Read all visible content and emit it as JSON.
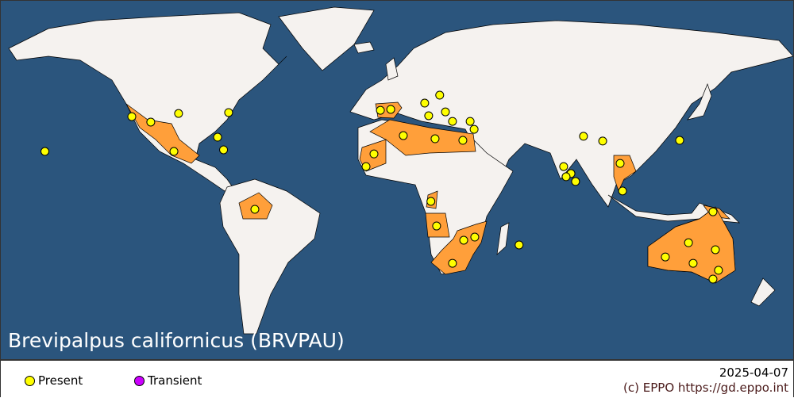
{
  "title": "Brevipalpus californicus (BRVPAU)",
  "colors": {
    "ocean": "#2b557d",
    "land": "#f5f2ef",
    "present_region": "#ff9f3a",
    "present_dot": "#ffff00",
    "transient_dot": "#cc00ff"
  },
  "legend": {
    "present": "Present",
    "transient": "Transient"
  },
  "date": "2025-04-07",
  "copyright": "(c) EPPO https://gd.eppo.int",
  "records": [
    {
      "status": "present",
      "lon": -120.6,
      "lat": 35.4
    },
    {
      "status": "present",
      "lon": -112,
      "lat": 33
    },
    {
      "status": "present",
      "lon": -101.5,
      "lat": 20
    },
    {
      "status": "present",
      "lon": -99.4,
      "lat": 36.8
    },
    {
      "status": "present",
      "lon": -76.7,
      "lat": 37.2
    },
    {
      "status": "present",
      "lon": -81.7,
      "lat": 26.3
    },
    {
      "status": "present",
      "lon": -79,
      "lat": 20.7
    },
    {
      "status": "present",
      "lon": -160,
      "lat": 20
    },
    {
      "status": "present",
      "lon": -64.8,
      "lat": -5.6
    },
    {
      "status": "present",
      "lon": -7.9,
      "lat": 38.2
    },
    {
      "status": "present",
      "lon": -3.2,
      "lat": 38.6
    },
    {
      "status": "present",
      "lon": 12.2,
      "lat": 41.4
    },
    {
      "status": "present",
      "lon": 19,
      "lat": 44.9
    },
    {
      "status": "present",
      "lon": 14,
      "lat": 35.8
    },
    {
      "status": "present",
      "lon": 21.6,
      "lat": 37.5
    },
    {
      "status": "present",
      "lon": 24.8,
      "lat": 33.3
    },
    {
      "status": "present",
      "lon": 32.8,
      "lat": 33.3
    },
    {
      "status": "present",
      "lon": 34.6,
      "lat": 29.8
    },
    {
      "status": "present",
      "lon": 2.5,
      "lat": 27
    },
    {
      "status": "present",
      "lon": 16.9,
      "lat": 25.6
    },
    {
      "status": "present",
      "lon": 29.5,
      "lat": 24.9
    },
    {
      "status": "present",
      "lon": -10.8,
      "lat": 18.9
    },
    {
      "status": "present",
      "lon": -14.4,
      "lat": 13.3
    },
    {
      "status": "present",
      "lon": 15,
      "lat": -2.1
    },
    {
      "status": "present",
      "lon": 17.6,
      "lat": -13
    },
    {
      "status": "present",
      "lon": 29.9,
      "lat": -19.3
    },
    {
      "status": "present",
      "lon": 34.9,
      "lat": -17.9
    },
    {
      "status": "present",
      "lon": 24.8,
      "lat": -29.5
    },
    {
      "status": "present",
      "lon": 55,
      "lat": -21.4
    },
    {
      "status": "present",
      "lon": 84.2,
      "lat": 26.7
    },
    {
      "status": "present",
      "lon": 92.9,
      "lat": 24.6
    },
    {
      "status": "present",
      "lon": 75.2,
      "lat": 13.3
    },
    {
      "status": "present",
      "lon": 78.5,
      "lat": 10.2
    },
    {
      "status": "present",
      "lon": 76.3,
      "lat": 8.8
    },
    {
      "status": "present",
      "lon": 80.6,
      "lat": 6.7
    },
    {
      "status": "present",
      "lon": 100.8,
      "lat": 14.7
    },
    {
      "status": "present",
      "lon": 101.9,
      "lat": 2.5
    },
    {
      "status": "present",
      "lon": 127.8,
      "lat": 24.9
    },
    {
      "status": "present",
      "lon": 142.9,
      "lat": -6.7
    },
    {
      "status": "present",
      "lon": 131.8,
      "lat": -20.4
    },
    {
      "status": "present",
      "lon": 121.3,
      "lat": -26.7
    },
    {
      "status": "present",
      "lon": 133.9,
      "lat": -29.5
    },
    {
      "status": "present",
      "lon": 144,
      "lat": -23.5
    },
    {
      "status": "present",
      "lon": 145.4,
      "lat": -32.6
    },
    {
      "status": "present",
      "lon": 142.9,
      "lat": -36.5
    }
  ]
}
